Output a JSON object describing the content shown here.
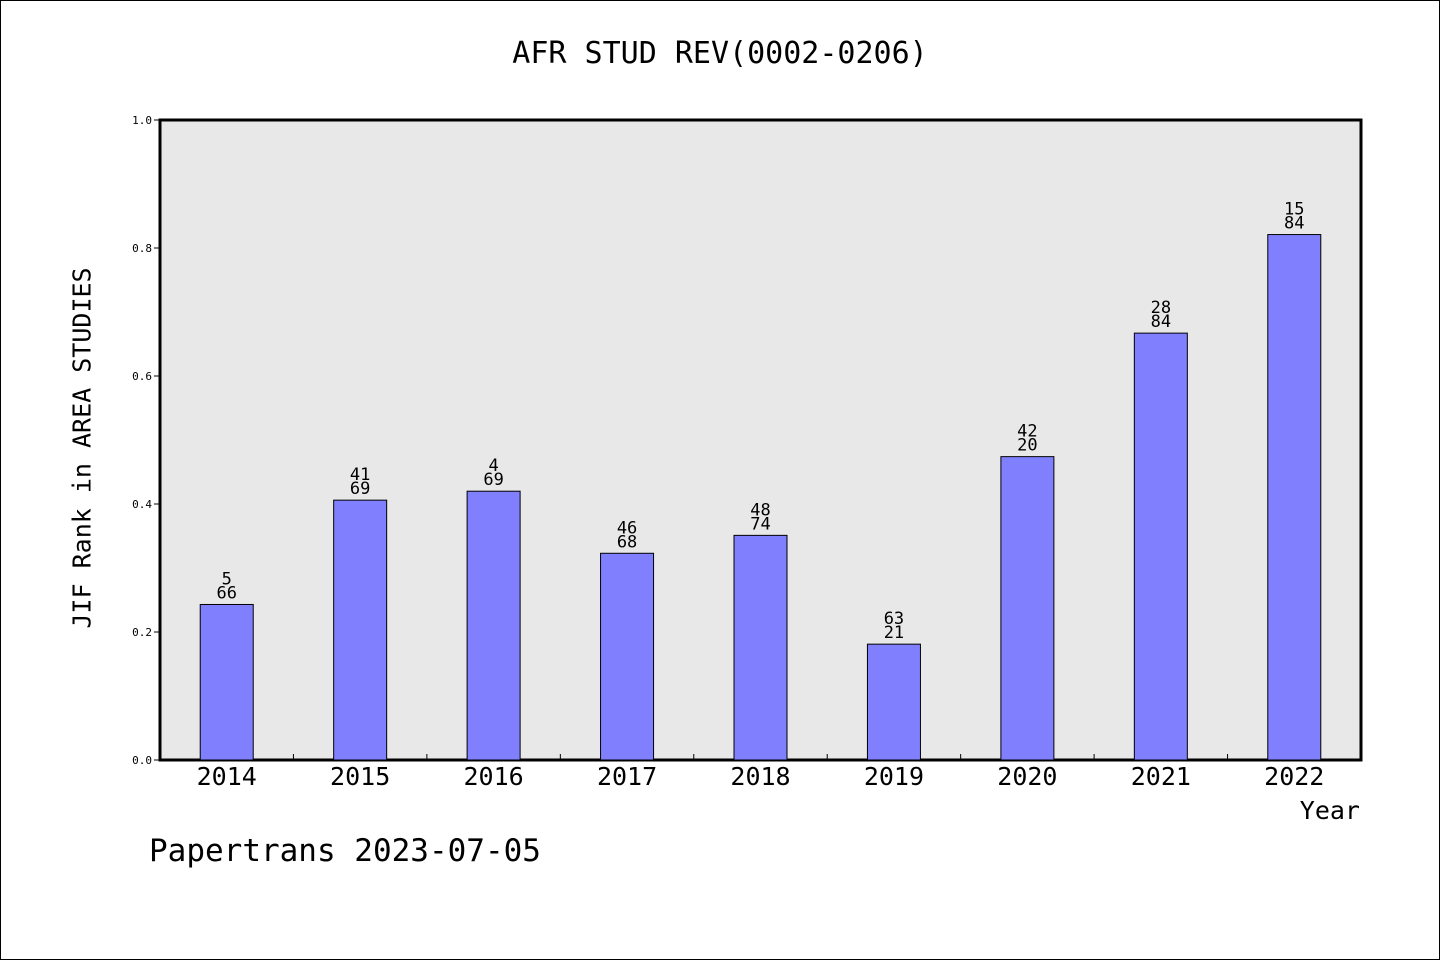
{
  "chart_data": {
    "type": "bar",
    "title": "AFR STUD REV(0002-0206)",
    "xlabel": "Year",
    "ylabel": "JIF Rank in AREA STUDIES",
    "ylim": [
      0,
      1.0
    ],
    "yticks": [
      "0.0",
      "0.2",
      "0.4",
      "0.6",
      "0.8",
      "1.0"
    ],
    "categories": [
      "2014",
      "2015",
      "2016",
      "2017",
      "2018",
      "2019",
      "2020",
      "2021",
      "2022"
    ],
    "values": [
      0.243,
      0.406,
      0.42,
      0.323,
      0.351,
      0.181,
      0.474,
      0.667,
      0.821
    ],
    "labels_top": [
      "5",
      "41",
      "4",
      "46",
      "48",
      "63",
      "42",
      "28",
      "15"
    ],
    "labels_bottom": [
      "66",
      "69",
      "69",
      "68",
      "74",
      "21",
      "20",
      "84",
      "84"
    ],
    "grid": false,
    "colors": {
      "bar_fill": "#8080ff",
      "plot_background": "#e8e8e8"
    }
  },
  "footer": "Papertrans 2023-07-05"
}
